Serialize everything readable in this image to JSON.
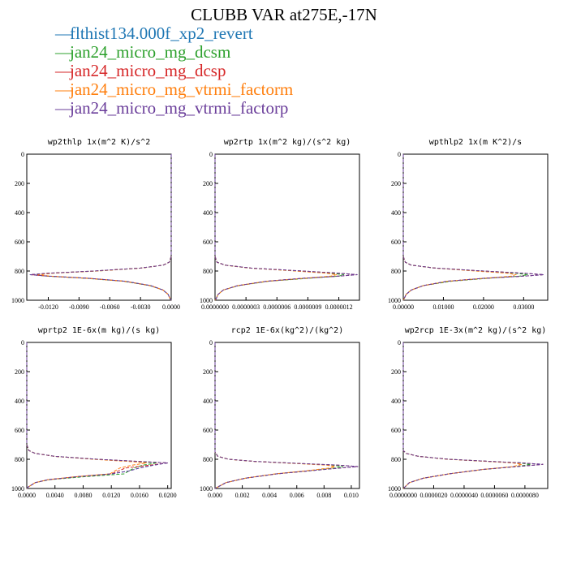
{
  "figure_title": "CLUBB VAR at275E,-17N",
  "legend": [
    {
      "label": "flthist134.000f_xp2_revert",
      "color": "#1f77b4"
    },
    {
      "label": "jan24_micro_mg_dcsm",
      "color": "#2ca02c"
    },
    {
      "label": "jan24_micro_mg_dcsp",
      "color": "#d62728"
    },
    {
      "label": "jan24_micro_mg_vtrmi_factorm",
      "color": "#ff7f0e"
    },
    {
      "label": "jan24_micro_mg_vtrmi_factorp",
      "color": "#6a3d9a"
    }
  ],
  "chart_data": [
    {
      "type": "line",
      "title": "wp2thlp   1x(m^2 K)/s^2",
      "xlim": [
        -0.0141,
        0.0
      ],
      "ylim": [
        1000,
        0
      ],
      "xticks": [
        "-0.0120",
        "-0.0090",
        "-0.0060",
        "-0.0030",
        "0.0000"
      ],
      "xtick_values": [
        -0.012,
        -0.009,
        -0.006,
        -0.003,
        0.0
      ],
      "yticks": [
        "0",
        "200",
        "400",
        "600",
        "800",
        "1000"
      ],
      "ytick_values": [
        0,
        200,
        400,
        600,
        800,
        1000
      ],
      "y": [
        0,
        700,
        740,
        760,
        780,
        800,
        815,
        825,
        835,
        850,
        870,
        900,
        930,
        960,
        990,
        1000
      ],
      "series": [
        {
          "values": [
            0.0,
            0.0,
            -0.0002,
            -0.0008,
            -0.003,
            -0.0075,
            -0.012,
            -0.0138,
            -0.012,
            -0.008,
            -0.0045,
            -0.002,
            -0.0008,
            -0.0003,
            -0.0001,
            0.0
          ]
        },
        {
          "values": [
            0.0,
            0.0,
            -0.0002,
            -0.0008,
            -0.003,
            -0.0073,
            -0.0118,
            -0.0134,
            -0.0122,
            -0.0083,
            -0.0047,
            -0.0021,
            -0.0008,
            -0.0003,
            -0.0001,
            0.0
          ]
        },
        {
          "values": [
            0.0,
            0.0,
            -0.0002,
            -0.0008,
            -0.003,
            -0.0075,
            -0.012,
            -0.0137,
            -0.012,
            -0.008,
            -0.0045,
            -0.002,
            -0.0008,
            -0.0003,
            -0.0001,
            0.0
          ]
        },
        {
          "values": [
            0.0,
            0.0,
            -0.0002,
            -0.0008,
            -0.0029,
            -0.0072,
            -0.0115,
            -0.013,
            -0.0118,
            -0.0082,
            -0.0046,
            -0.002,
            -0.0008,
            -0.0003,
            -0.0001,
            0.0
          ]
        },
        {
          "values": [
            0.0,
            0.0,
            -0.0002,
            -0.0008,
            -0.003,
            -0.0075,
            -0.012,
            -0.0138,
            -0.012,
            -0.008,
            -0.0045,
            -0.002,
            -0.0008,
            -0.0003,
            -0.0001,
            0.0
          ]
        }
      ]
    },
    {
      "type": "line",
      "title": "wp2rtp   1x(m^2 kg)/(s^2 kg)",
      "xlim": [
        0.0,
        1.4e-06
      ],
      "ylim": [
        1000,
        0
      ],
      "xticks": [
        "0.0000000",
        "0.0000003",
        "0.0000006",
        "0.0000009",
        "0.0000012"
      ],
      "xtick_values": [
        0.0,
        3e-07,
        6e-07,
        9e-07,
        1.2e-06
      ],
      "yticks": [
        "0",
        "200",
        "400",
        "600",
        "800",
        "1000"
      ],
      "ytick_values": [
        0,
        200,
        400,
        600,
        800,
        1000
      ],
      "y": [
        0,
        700,
        740,
        760,
        780,
        800,
        815,
        825,
        835,
        850,
        870,
        900,
        930,
        960,
        990,
        1000
      ],
      "series": [
        {
          "values": [
            0.0,
            0.0,
            2e-08,
            1e-07,
            3.5e-07,
            8.5e-07,
            1.2e-06,
            1.38e-06,
            1.2e-06,
            8.5e-07,
            5e-07,
            2.2e-07,
            8e-08,
            3e-08,
            1e-08,
            0.0
          ]
        },
        {
          "values": [
            0.0,
            0.0,
            2e-08,
            1e-07,
            3.4e-07,
            8e-07,
            1.12e-06,
            1.25e-06,
            1.2e-06,
            9e-07,
            5.2e-07,
            2.3e-07,
            8e-08,
            3e-08,
            1e-08,
            0.0
          ]
        },
        {
          "values": [
            0.0,
            0.0,
            2e-08,
            1e-07,
            3.5e-07,
            8.5e-07,
            1.2e-06,
            1.38e-06,
            1.2e-06,
            8.5e-07,
            5e-07,
            2.2e-07,
            8e-08,
            3e-08,
            1e-08,
            0.0
          ]
        },
        {
          "values": [
            0.0,
            0.0,
            2e-08,
            1e-07,
            3.3e-07,
            7.8e-07,
            1.08e-06,
            1.18e-06,
            1.12e-06,
            8.6e-07,
            5e-07,
            2.2e-07,
            8e-08,
            3e-08,
            1e-08,
            0.0
          ]
        },
        {
          "values": [
            0.0,
            0.0,
            2e-08,
            1e-07,
            3.5e-07,
            8.5e-07,
            1.2e-06,
            1.38e-06,
            1.2e-06,
            8.5e-07,
            5e-07,
            2.2e-07,
            8e-08,
            3e-08,
            1e-08,
            0.0
          ]
        }
      ]
    },
    {
      "type": "line",
      "title": "wpthlp2   1x(m K^2)/s",
      "xlim": [
        0.0,
        0.036
      ],
      "ylim": [
        1000,
        0
      ],
      "xticks": [
        "0.00000",
        "0.01000",
        "0.02000",
        "0.03000"
      ],
      "xtick_values": [
        0.0,
        0.01,
        0.02,
        0.03
      ],
      "yticks": [
        "0",
        "200",
        "400",
        "600",
        "800",
        "1000"
      ],
      "ytick_values": [
        0,
        200,
        400,
        600,
        800,
        1000
      ],
      "y": [
        0,
        700,
        740,
        760,
        780,
        800,
        815,
        825,
        835,
        850,
        870,
        900,
        930,
        960,
        990,
        1000
      ],
      "series": [
        {
          "values": [
            0.0,
            0.0,
            0.0005,
            0.002,
            0.008,
            0.02,
            0.03,
            0.035,
            0.03,
            0.02,
            0.011,
            0.005,
            0.002,
            0.0007,
            0.0002,
            0.0
          ]
        },
        {
          "values": [
            0.0,
            0.0,
            0.0005,
            0.002,
            0.008,
            0.019,
            0.028,
            0.031,
            0.029,
            0.021,
            0.012,
            0.005,
            0.002,
            0.0007,
            0.0002,
            0.0
          ]
        },
        {
          "values": [
            0.0,
            0.0,
            0.0005,
            0.002,
            0.008,
            0.02,
            0.03,
            0.035,
            0.03,
            0.02,
            0.011,
            0.005,
            0.002,
            0.0007,
            0.0002,
            0.0
          ]
        },
        {
          "values": [
            0.0,
            0.0,
            0.0005,
            0.002,
            0.0078,
            0.018,
            0.026,
            0.028,
            0.027,
            0.02,
            0.011,
            0.005,
            0.002,
            0.0007,
            0.0002,
            0.0
          ]
        },
        {
          "values": [
            0.0,
            0.0,
            0.0005,
            0.002,
            0.008,
            0.02,
            0.03,
            0.035,
            0.03,
            0.02,
            0.011,
            0.005,
            0.002,
            0.0007,
            0.0002,
            0.0
          ]
        }
      ]
    },
    {
      "type": "line",
      "title": "wprtp2   1E-6x(m kg)/(s kg)",
      "xlim": [
        0.0,
        0.0205
      ],
      "ylim": [
        1000,
        0
      ],
      "xticks": [
        "0.0000",
        "0.0040",
        "0.0080",
        "0.0120",
        "0.0160",
        "0.0200"
      ],
      "xtick_values": [
        0.0,
        0.004,
        0.008,
        0.012,
        0.016,
        0.02
      ],
      "yticks": [
        "0",
        "200",
        "400",
        "600",
        "800",
        "1000"
      ],
      "ytick_values": [
        0,
        200,
        400,
        600,
        800,
        1000
      ],
      "y": [
        0,
        700,
        740,
        760,
        780,
        800,
        815,
        825,
        840,
        860,
        880,
        900,
        920,
        940,
        960,
        990,
        1000
      ],
      "series": [
        {
          "values": [
            0.0,
            0.0,
            0.0003,
            0.0012,
            0.004,
            0.01,
            0.016,
            0.02,
            0.018,
            0.016,
            0.0145,
            0.012,
            0.007,
            0.003,
            0.0012,
            0.0002,
            0.0
          ]
        },
        {
          "values": [
            0.0,
            0.0,
            0.0003,
            0.0012,
            0.004,
            0.0098,
            0.0155,
            0.0185,
            0.0165,
            0.0152,
            0.0145,
            0.0138,
            0.008,
            0.0032,
            0.0012,
            0.0002,
            0.0
          ]
        },
        {
          "values": [
            0.0,
            0.0,
            0.0003,
            0.0012,
            0.004,
            0.01,
            0.016,
            0.02,
            0.0175,
            0.014,
            0.013,
            0.012,
            0.007,
            0.003,
            0.0012,
            0.0002,
            0.0
          ]
        },
        {
          "values": [
            0.0,
            0.0,
            0.0003,
            0.0012,
            0.0039,
            0.0095,
            0.0145,
            0.017,
            0.015,
            0.0132,
            0.0125,
            0.0118,
            0.0068,
            0.003,
            0.0012,
            0.0002,
            0.0
          ]
        },
        {
          "values": [
            0.0,
            0.0,
            0.0003,
            0.0012,
            0.004,
            0.01,
            0.016,
            0.02,
            0.018,
            0.016,
            0.0145,
            0.012,
            0.007,
            0.003,
            0.0012,
            0.0002,
            0.0
          ]
        }
      ]
    },
    {
      "type": "line",
      "title": "rcp2   1E-6x(kg^2)/(kg^2)",
      "xlim": [
        0.0,
        0.0106
      ],
      "ylim": [
        1000,
        0
      ],
      "xticks": [
        "0.000",
        "0.002",
        "0.004",
        "0.006",
        "0.008",
        "0.010"
      ],
      "xtick_values": [
        0.0,
        0.002,
        0.004,
        0.006,
        0.008,
        0.01
      ],
      "yticks": [
        "0",
        "200",
        "400",
        "600",
        "800",
        "1000"
      ],
      "ytick_values": [
        0,
        200,
        400,
        600,
        800,
        1000
      ],
      "y": [
        0,
        750,
        780,
        800,
        815,
        830,
        840,
        850,
        860,
        880,
        900,
        930,
        960,
        990,
        1000
      ],
      "series": [
        {
          "values": [
            0.0,
            0.0,
            0.0002,
            0.001,
            0.003,
            0.0065,
            0.009,
            0.0105,
            0.0092,
            0.0068,
            0.0045,
            0.0022,
            0.0008,
            0.0002,
            0.0
          ]
        },
        {
          "values": [
            0.0,
            0.0,
            0.0002,
            0.001,
            0.003,
            0.0063,
            0.0086,
            0.0094,
            0.0088,
            0.0068,
            0.0045,
            0.0022,
            0.0008,
            0.0002,
            0.0
          ]
        },
        {
          "values": [
            0.0,
            0.0,
            0.0002,
            0.001,
            0.003,
            0.0065,
            0.009,
            0.0105,
            0.0092,
            0.0068,
            0.0045,
            0.0022,
            0.0008,
            0.0002,
            0.0
          ]
        },
        {
          "values": [
            0.0,
            0.0,
            0.0002,
            0.001,
            0.0029,
            0.0061,
            0.0082,
            0.0088,
            0.0084,
            0.0066,
            0.0044,
            0.0022,
            0.0008,
            0.0002,
            0.0
          ]
        },
        {
          "values": [
            0.0,
            0.0,
            0.0002,
            0.001,
            0.003,
            0.0065,
            0.009,
            0.0105,
            0.0092,
            0.0068,
            0.0045,
            0.0022,
            0.0008,
            0.0002,
            0.0
          ]
        }
      ]
    },
    {
      "type": "line",
      "title": "wp2rcp   1E-3x(m^2 kg)/(s^2 kg)",
      "xlim": [
        0.0,
        9.5e-06
      ],
      "ylim": [
        1000,
        0
      ],
      "xticks": [
        "0.0000000",
        "0.0000020",
        "0.0000040",
        "0.0000060",
        "0.0000080"
      ],
      "xtick_values": [
        0.0,
        2e-06,
        4e-06,
        6e-06,
        8e-06
      ],
      "yticks": [
        "0",
        "200",
        "400",
        "600",
        "800",
        "1000"
      ],
      "ytick_values": [
        0,
        200,
        400,
        600,
        800,
        1000
      ],
      "y": [
        0,
        740,
        760,
        780,
        800,
        815,
        825,
        835,
        850,
        870,
        900,
        930,
        960,
        990,
        1000
      ],
      "series": [
        {
          "values": [
            0.0,
            0.0,
            2e-07,
            1e-06,
            3e-06,
            5.8e-06,
            7.8e-06,
            9.2e-06,
            7.5e-06,
            5.2e-06,
            3e-06,
            1.3e-06,
            4e-07,
            1e-07,
            0.0
          ]
        },
        {
          "values": [
            0.0,
            0.0,
            2e-07,
            1e-06,
            3e-06,
            5.7e-06,
            7.6e-06,
            8.4e-06,
            7.4e-06,
            5.3e-06,
            3e-06,
            1.3e-06,
            4e-07,
            1e-07,
            0.0
          ]
        },
        {
          "values": [
            0.0,
            0.0,
            2e-07,
            1e-06,
            3e-06,
            5.8e-06,
            7.8e-06,
            9.2e-06,
            7.5e-06,
            5.2e-06,
            3e-06,
            1.3e-06,
            4e-07,
            1e-07,
            0.0
          ]
        },
        {
          "values": [
            0.0,
            0.0,
            2e-07,
            1e-06,
            2.9e-06,
            5.5e-06,
            7.2e-06,
            7.8e-06,
            7.2e-06,
            5.2e-06,
            3e-06,
            1.3e-06,
            4e-07,
            1e-07,
            0.0
          ]
        },
        {
          "values": [
            0.0,
            0.0,
            2e-07,
            1e-06,
            3e-06,
            5.8e-06,
            7.8e-06,
            9.2e-06,
            7.5e-06,
            5.2e-06,
            3e-06,
            1.3e-06,
            4e-07,
            1e-07,
            0.0
          ]
        }
      ]
    }
  ]
}
